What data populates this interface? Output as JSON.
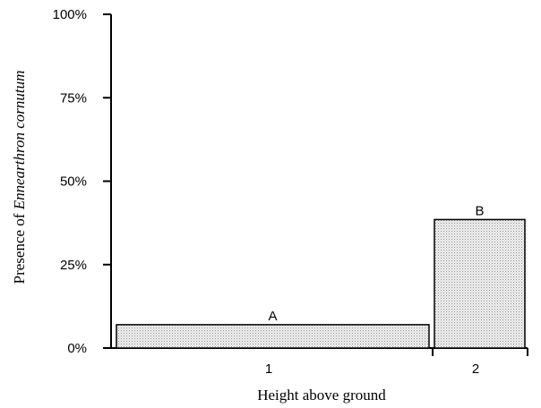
{
  "chart_data": {
    "type": "bar",
    "categories": [
      "1",
      "2"
    ],
    "series": [
      {
        "values": [
          7,
          38.5
        ],
        "labels": [
          "A",
          "B"
        ]
      }
    ],
    "xlabel": "Height above ground",
    "ylabel_prefix": "Presence of ",
    "ylabel_italic": "Ennearthron cornutum",
    "yticks": [
      "0%",
      "25%",
      "50%",
      "75%",
      "100%"
    ],
    "ylim": [
      0,
      100
    ],
    "grid": false,
    "legend": "none",
    "fill_color": "#e6e6e6",
    "stroke_color": "#000000"
  }
}
